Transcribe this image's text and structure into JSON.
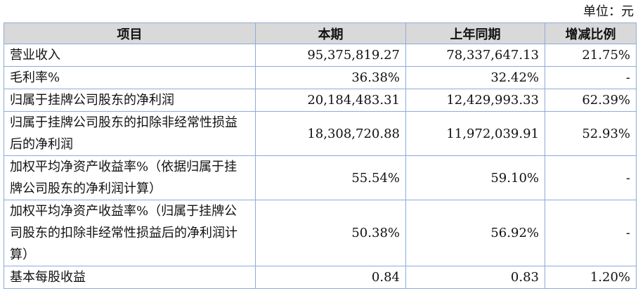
{
  "unit_label": "单位：元",
  "headers": [
    "项目",
    "本期",
    "上年同期",
    "增减比例"
  ],
  "rows": [
    {
      "item": "营业收入",
      "current": "95,375,819.27",
      "prior": "78,337,647.13",
      "change": "21.75%"
    },
    {
      "item": "毛利率%",
      "current": "36.38%",
      "prior": "32.42%",
      "change": "-"
    },
    {
      "item": "归属于挂牌公司股东的净利润",
      "current": "20,184,483.31",
      "prior": "12,429,993.33",
      "change": "62.39%"
    },
    {
      "item": "归属于挂牌公司股东的扣除非经常性损益后的净利润",
      "current": "18,308,720.88",
      "prior": "11,972,039.91",
      "change": "52.93%"
    },
    {
      "item": "加权平均净资产收益率%（依据归属于挂牌公司股东的净利润计算）",
      "current": "55.54%",
      "prior": "59.10%",
      "change": "-"
    },
    {
      "item": "加权平均净资产收益率%（归属于挂牌公司股东的扣除非经常性损益后的净利润计算）",
      "current": "50.38%",
      "prior": "56.92%",
      "change": "-"
    },
    {
      "item": "基本每股收益",
      "current": "0.84",
      "prior": "0.83",
      "change": "1.20%"
    }
  ]
}
